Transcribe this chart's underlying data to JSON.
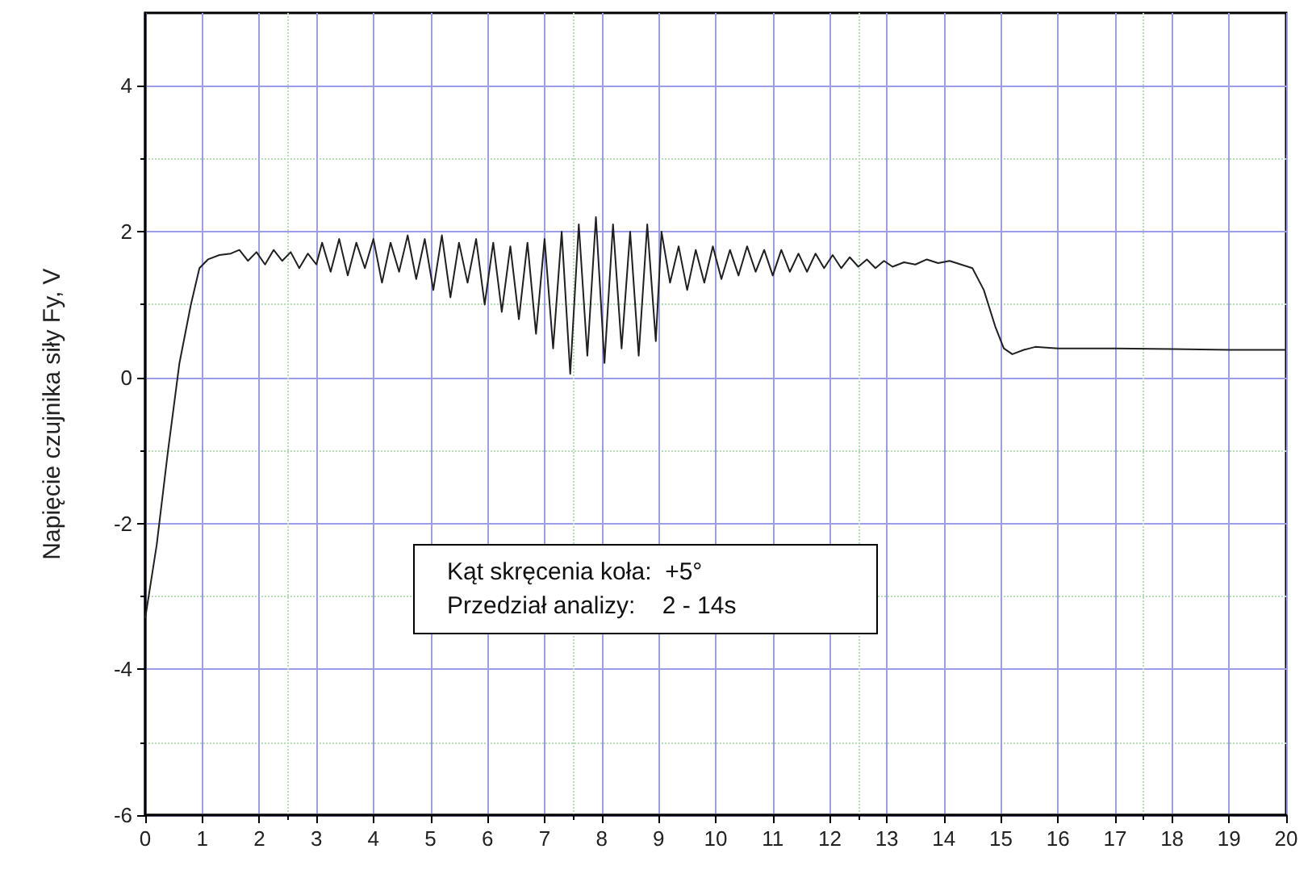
{
  "chart_data": {
    "type": "line",
    "ylabel": "Napięcie czujnika siły Fy, V",
    "annotations": [
      "Kąt skręcenia koła:  +5°",
      "Przedział analizy:    2 - 14s"
    ],
    "xlim": [
      0,
      20
    ],
    "xticks": [
      0,
      1,
      2,
      3,
      4,
      5,
      6,
      7,
      8,
      9,
      10,
      11,
      12,
      13,
      14,
      15,
      16,
      17,
      18,
      19,
      20
    ],
    "ylim": [
      -6,
      5
    ],
    "yticks": [
      -6,
      -4,
      -2,
      0,
      2,
      4
    ],
    "grid": true,
    "marker": "none",
    "line_style": "solid",
    "series": [
      {
        "color": "#202020",
        "x": [
          0,
          0.2,
          0.4,
          0.6,
          0.8,
          0.95,
          1.1,
          1.3,
          1.5,
          1.65,
          1.8,
          1.95,
          2.1,
          2.25,
          2.4,
          2.55,
          2.7,
          2.85,
          3.0,
          3.1,
          3.25,
          3.4,
          3.55,
          3.7,
          3.85,
          4.0,
          4.15,
          4.3,
          4.45,
          4.6,
          4.75,
          4.9,
          5.05,
          5.2,
          5.35,
          5.5,
          5.65,
          5.8,
          5.95,
          6.1,
          6.25,
          6.4,
          6.55,
          6.7,
          6.85,
          7.0,
          7.15,
          7.3,
          7.45,
          7.6,
          7.75,
          7.9,
          8.05,
          8.2,
          8.35,
          8.5,
          8.65,
          8.8,
          8.95,
          9.05,
          9.2,
          9.35,
          9.5,
          9.65,
          9.8,
          9.95,
          10.1,
          10.25,
          10.4,
          10.55,
          10.7,
          10.85,
          11.0,
          11.15,
          11.3,
          11.45,
          11.6,
          11.75,
          11.9,
          12.05,
          12.2,
          12.35,
          12.5,
          12.65,
          12.8,
          12.95,
          13.1,
          13.3,
          13.5,
          13.7,
          13.9,
          14.1,
          14.3,
          14.5,
          14.7,
          14.9,
          15.05,
          15.2,
          15.4,
          15.6,
          16,
          17,
          18,
          19,
          20
        ],
        "values": [
          -3.3,
          -2.3,
          -1.0,
          0.2,
          1.0,
          1.5,
          1.62,
          1.68,
          1.7,
          1.75,
          1.6,
          1.72,
          1.55,
          1.75,
          1.6,
          1.72,
          1.5,
          1.7,
          1.55,
          1.85,
          1.45,
          1.9,
          1.4,
          1.85,
          1.5,
          1.9,
          1.3,
          1.85,
          1.45,
          1.95,
          1.35,
          1.9,
          1.2,
          1.95,
          1.1,
          1.85,
          1.3,
          1.9,
          1.0,
          1.85,
          0.9,
          1.8,
          0.8,
          1.85,
          0.6,
          1.9,
          0.4,
          2.0,
          0.05,
          2.1,
          0.3,
          2.2,
          0.2,
          2.1,
          0.4,
          2.0,
          0.3,
          2.1,
          0.5,
          2.0,
          1.3,
          1.8,
          1.2,
          1.75,
          1.3,
          1.8,
          1.35,
          1.75,
          1.4,
          1.8,
          1.45,
          1.75,
          1.4,
          1.75,
          1.45,
          1.7,
          1.45,
          1.7,
          1.5,
          1.68,
          1.5,
          1.65,
          1.52,
          1.62,
          1.5,
          1.6,
          1.52,
          1.58,
          1.55,
          1.62,
          1.57,
          1.6,
          1.55,
          1.5,
          1.2,
          0.7,
          0.4,
          0.32,
          0.38,
          0.42,
          0.4,
          0.4,
          0.39,
          0.38,
          0.38
        ]
      }
    ]
  }
}
